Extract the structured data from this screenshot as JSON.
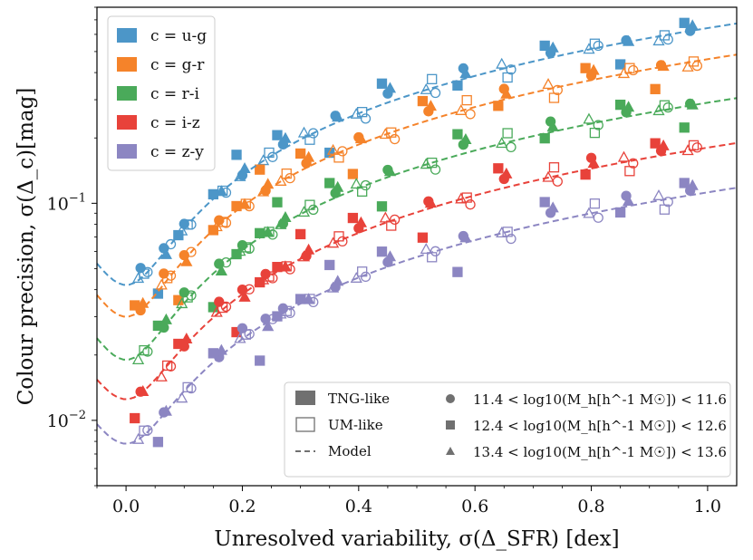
{
  "chart_data": {
    "type": "scatter",
    "title": "",
    "xlabel": "Unresolved variability, σ(Δ_SFR) [dex]",
    "ylabel": "Colour precision, σ(Δ_c)[mag]",
    "yscale": "log",
    "xlim": [
      -0.05,
      1.05
    ],
    "ylim": [
      0.005,
      0.8
    ],
    "x_ticks": [
      0.0,
      0.2,
      0.4,
      0.6,
      0.8,
      1.0
    ],
    "x_tick_labels": [
      "0.0",
      "0.2",
      "0.4",
      "0.6",
      "0.8",
      "1.0"
    ],
    "y_ticks": [
      0.01,
      0.1
    ],
    "y_tick_labels": [
      "10^-2",
      "10^-1"
    ],
    "colour_legend": {
      "position": "top-left",
      "entries": [
        {
          "label": "c = u-g",
          "color": "#4c96c8"
        },
        {
          "label": "c = g-r",
          "color": "#f5832a"
        },
        {
          "label": "c = r-i",
          "color": "#4aaa5a"
        },
        {
          "label": "c = i-z",
          "color": "#e8423a"
        },
        {
          "label": "c = z-y",
          "color": "#8c86c2"
        }
      ]
    },
    "style_legend": {
      "position": "bottom-right",
      "entries": [
        {
          "label": "TNG-like",
          "kind": "filled"
        },
        {
          "label": "UM-like",
          "kind": "open"
        },
        {
          "label": "Model",
          "kind": "dashed"
        }
      ]
    },
    "marker_legend": {
      "position": "bottom-right",
      "entries": [
        {
          "marker": "circle",
          "label": "11.4 < log10(M_h[h^-1 M☉]) < 11.6"
        },
        {
          "marker": "square",
          "label": "12.4 < log10(M_h[h^-1 M☉]) < 12.6"
        },
        {
          "marker": "triangle",
          "label": "13.4 < log10(M_h[h^-1 M☉]) < 13.6"
        }
      ]
    },
    "model": {
      "form": "sqrt(A^2 + B^2 * x^2)",
      "series": [
        {
          "name": "u-g",
          "A": 0.042,
          "B": 0.64
        },
        {
          "name": "g-r",
          "A": 0.03,
          "B": 0.46
        },
        {
          "name": "r-i",
          "A": 0.019,
          "B": 0.29
        },
        {
          "name": "i-z",
          "A": 0.0125,
          "B": 0.18
        },
        {
          "name": "z-y",
          "A": 0.0078,
          "B": 0.112
        }
      ]
    },
    "scatter_offsets": {
      "x": [
        0.025,
        0.065,
        0.1,
        0.16,
        0.2,
        0.24,
        0.27,
        0.31,
        0.36,
        0.4,
        0.45,
        0.52,
        0.58,
        0.65,
        0.73,
        0.8,
        0.86,
        0.92,
        0.97
      ],
      "circle_filled": [
        1.12,
        1.05,
        1.0,
        1.05,
        1.08,
        1.1,
        1.12,
        1.05,
        1.02,
        1.0,
        1.05
      ],
      "circle_open": [
        1.0,
        0.95,
        0.98,
        1.0,
        0.92,
        0.94,
        0.97,
        1.02,
        0.95,
        1.0,
        0.96
      ],
      "square_filled": [
        1.0,
        1.3,
        1.2,
        0.75,
        1.25,
        0.95,
        1.15,
        0.8,
        1.1,
        0.7,
        1.05
      ],
      "square_open": [
        1.0,
        1.05,
        0.95,
        1.0,
        1.1,
        0.9,
        1.05,
        1.0,
        1.02,
        1.0
      ],
      "triangle_filled": [
        1.05,
        1.1,
        1.05,
        1.15,
        1.05,
        1.1,
        1.0,
        1.05,
        0.95,
        1.0
      ],
      "triangle_open": [
        1.0,
        1.05,
        1.0,
        1.0,
        1.05,
        1.0,
        0.95,
        1.02,
        1.0,
        1.0
      ]
    }
  }
}
